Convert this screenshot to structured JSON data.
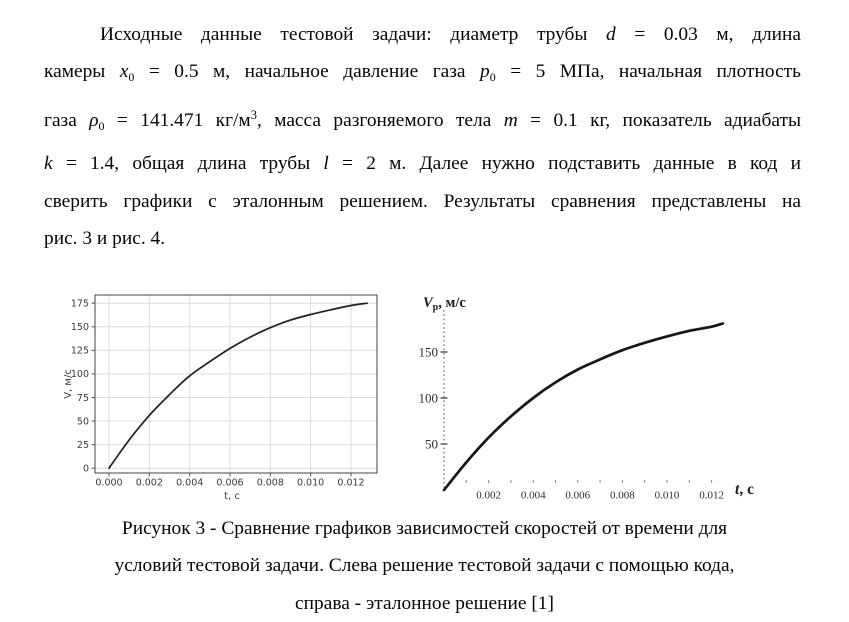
{
  "page": {
    "background": "#ffffff",
    "text_color": "#050505"
  },
  "paragraph": {
    "lines": [
      {
        "justify": true,
        "indent": true,
        "segments": [
          {
            "t": "Исходные данные тестовой задачи: диаметр трубы "
          },
          {
            "t": "d",
            "i": true
          },
          {
            "t": " = 0.03 м, длина"
          }
        ]
      },
      {
        "justify": true,
        "segments": [
          {
            "t": "камеры "
          },
          {
            "t": "x",
            "i": true
          },
          {
            "t": "0",
            "s": "sub"
          },
          {
            "t": " = 0.5 м, начальное давление газа "
          },
          {
            "t": "p",
            "i": true
          },
          {
            "t": "0",
            "s": "sub"
          },
          {
            "t": " = 5 МПа, начальная плотность"
          }
        ]
      },
      {
        "justify": true,
        "segments": [
          {
            "t": "газа "
          },
          {
            "t": "ρ",
            "i": true
          },
          {
            "t": "0",
            "s": "sub"
          },
          {
            "t": " = 141.471 кг/м"
          },
          {
            "t": "3",
            "s": "sup"
          },
          {
            "t": ", масса разгоняемого тела "
          },
          {
            "t": "m",
            "i": true
          },
          {
            "t": " = 0.1 кг, показатель адиабаты"
          }
        ]
      },
      {
        "justify": true,
        "segments": [
          {
            "t": "k",
            "i": true
          },
          {
            "t": " = 1.4, общая длина трубы "
          },
          {
            "t": "l",
            "i": true
          },
          {
            "t": " = 2 м. Далее нужно подставить данные в код и"
          }
        ]
      },
      {
        "justify": true,
        "segments": [
          {
            "t": "сверить графики с эталонным решением. Результаты сравнения представлены на"
          }
        ]
      },
      {
        "justify": false,
        "segments": [
          {
            "t": "рис. 3 и рис. 4."
          }
        ]
      }
    ]
  },
  "figure": {
    "caption": {
      "lines": [
        "Рисунок 3 - Сравнение графиков зависимостей скоростей от времени для",
        "условий тестовой задачи. Слева решение тестовой задачи с помощью кода,",
        "справа - эталонное решение [1]"
      ]
    }
  },
  "chart_data": [
    {
      "type": "line",
      "name": "code-solution",
      "title": "",
      "xlabel": "t, с",
      "ylabel": "V, м/с",
      "x": [
        0,
        0.001,
        0.002,
        0.003,
        0.004,
        0.005,
        0.006,
        0.007,
        0.008,
        0.009,
        0.01,
        0.011,
        0.012,
        0.0128
      ],
      "y": [
        0,
        30,
        56,
        78,
        98,
        113,
        127,
        139,
        149,
        157,
        163,
        168,
        172.5,
        175
      ],
      "xticks": [
        0,
        0.002,
        0.004,
        0.006,
        0.008,
        0.01,
        0.012
      ],
      "xtick_labels": [
        "0.000",
        "0.002",
        "0.004",
        "0.006",
        "0.008",
        "0.010",
        "0.012"
      ],
      "yticks": [
        0,
        25,
        50,
        75,
        100,
        125,
        150,
        175
      ],
      "xlim": [
        -0.0007,
        0.0133
      ],
      "ylim": [
        -5.5,
        183.5
      ],
      "grid": true,
      "legend": null,
      "line_color": "#1f1f1f",
      "grid_color": "#dcdcdc",
      "spine_color": "#555555",
      "tick_label_color": "#3a3a3a"
    },
    {
      "type": "line",
      "name": "reference-solution",
      "style": "scanned",
      "title": "",
      "xlabel": "t, с",
      "ylabel": "Vp, м/с",
      "ylabel_parts": {
        "main": "V",
        "sub": "p",
        "rest": ", м/с"
      },
      "xlabel_parts": {
        "main": "t",
        "rest": ", с"
      },
      "x": [
        0,
        0.001,
        0.002,
        0.003,
        0.004,
        0.005,
        0.006,
        0.007,
        0.008,
        0.009,
        0.01,
        0.011,
        0.012,
        0.0125
      ],
      "y": [
        0,
        30,
        57,
        80,
        100,
        117,
        131,
        142,
        152,
        160,
        167,
        173,
        177.5,
        181
      ],
      "xticks": [
        0.002,
        0.004,
        0.006,
        0.008,
        0.01,
        0.012
      ],
      "xtick_labels": [
        "0.002",
        "0.004",
        "0.006",
        "0.008",
        "0.010",
        "0.012"
      ],
      "yticks": [
        50,
        100,
        150
      ],
      "grid": false,
      "legend": null,
      "line_color": "#161616",
      "axis_color": "#666666",
      "tick_label_color": "#2e2e2e"
    }
  ]
}
